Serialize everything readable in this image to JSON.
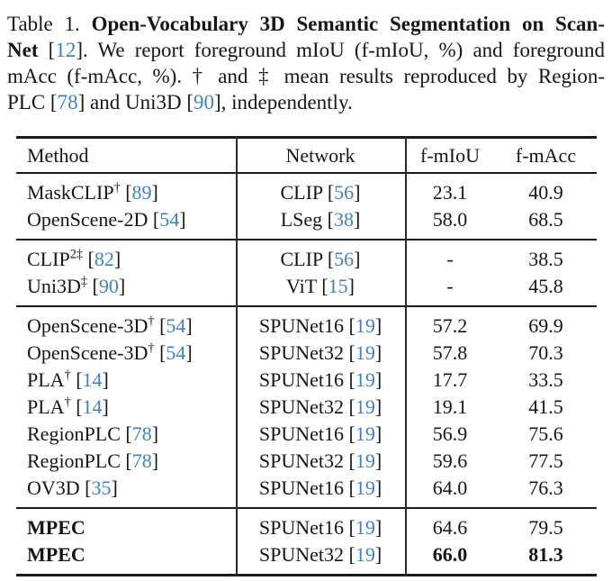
{
  "caption": {
    "label_and_title": "Table 1. Open-Vocabulary 3D Semantic Segmentation on Scan-Net [12].",
    "lines": [
      {
        "segments": [
          {
            "t": "Table 1. "
          },
          {
            "t": "Open-Vocabulary 3D Semantic Segmentation on Scan-"
          }
        ]
      },
      {
        "segments": [
          {
            "t": "Net"
          },
          {
            "t": " ["
          },
          {
            "t": "12"
          },
          {
            "t": "]. We report foreground mIoU (f-mIoU, %) and foreground"
          }
        ]
      },
      {
        "segments": [
          {
            "t": "mAcc (f-mAcc, %). † and ‡ mean results reproduced by Region-"
          }
        ]
      },
      {
        "segments": [
          {
            "t": "PLC ["
          },
          {
            "t": "78"
          },
          {
            "t": "] and Uni3D ["
          },
          {
            "t": "90"
          },
          {
            "t": "], independently."
          }
        ]
      }
    ]
  },
  "glyphs": {
    "lb": "[",
    "rb": "]"
  },
  "colors": {
    "citation_blue": "#4080C4",
    "text": "#161616",
    "rule": "#1b1b1b"
  },
  "table": {
    "header": {
      "method": "Method",
      "network": "Network",
      "fmiou": "f-mIoU",
      "fmacc": "f-mAcc"
    },
    "groups": [
      {
        "rows": [
          {
            "method": {
              "name": "MaskCLIP",
              "sup": "†",
              "cite": "89"
            },
            "network": {
              "name": "CLIP",
              "cite": "56"
            },
            "fmiou": "23.1",
            "fmacc": "40.9"
          },
          {
            "method": {
              "name": "OpenScene-2D",
              "cite": "54"
            },
            "network": {
              "name": "LSeg",
              "cite": "38"
            },
            "fmiou": "58.0",
            "fmacc": "68.5"
          }
        ]
      },
      {
        "rows": [
          {
            "method": {
              "name": "CLIP",
              "sup": "2‡",
              "cite": "82"
            },
            "network": {
              "name": "CLIP",
              "cite": "56"
            },
            "fmiou": "-",
            "fmacc": "38.5"
          },
          {
            "method": {
              "name": "Uni3D",
              "sup": "‡",
              "cite": "90"
            },
            "network": {
              "name": "ViT",
              "cite": "15"
            },
            "fmiou": "-",
            "fmacc": "45.8"
          }
        ]
      },
      {
        "rows": [
          {
            "method": {
              "name": "OpenScene-3D",
              "sup": "†",
              "cite": "54"
            },
            "network": {
              "name": "SPUNet16",
              "cite": "19"
            },
            "fmiou": "57.2",
            "fmacc": "69.9"
          },
          {
            "method": {
              "name": "OpenScene-3D",
              "sup": "†",
              "cite": "54"
            },
            "network": {
              "name": "SPUNet32",
              "cite": "19"
            },
            "fmiou": "57.8",
            "fmacc": "70.3"
          },
          {
            "method": {
              "name": "PLA",
              "sup": "†",
              "cite": "14"
            },
            "network": {
              "name": "SPUNet16",
              "cite": "19"
            },
            "fmiou": "17.7",
            "fmacc": "33.5"
          },
          {
            "method": {
              "name": "PLA",
              "sup": "†",
              "cite": "14"
            },
            "network": {
              "name": "SPUNet32",
              "cite": "19"
            },
            "fmiou": "19.1",
            "fmacc": "41.5"
          },
          {
            "method": {
              "name": "RegionPLC",
              "cite": "78"
            },
            "network": {
              "name": "SPUNet16",
              "cite": "19"
            },
            "fmiou": "56.9",
            "fmacc": "75.6"
          },
          {
            "method": {
              "name": "RegionPLC",
              "cite": "78"
            },
            "network": {
              "name": "SPUNet32",
              "cite": "19"
            },
            "fmiou": "59.6",
            "fmacc": "77.5"
          },
          {
            "method": {
              "name": "OV3D",
              "cite": "35"
            },
            "network": {
              "name": "SPUNet16",
              "cite": "19"
            },
            "fmiou": "64.0",
            "fmacc": "76.3"
          }
        ]
      },
      {
        "rows": [
          {
            "method": {
              "name": "MPEC"
            },
            "network": {
              "name": "SPUNet16",
              "cite": "19"
            },
            "fmiou": "64.6",
            "fmacc": "79.5"
          },
          {
            "method": {
              "name": "MPEC"
            },
            "network": {
              "name": "SPUNet32",
              "cite": "19"
            },
            "fmiou": "66.0",
            "fmacc": "81.3"
          }
        ]
      }
    ]
  }
}
